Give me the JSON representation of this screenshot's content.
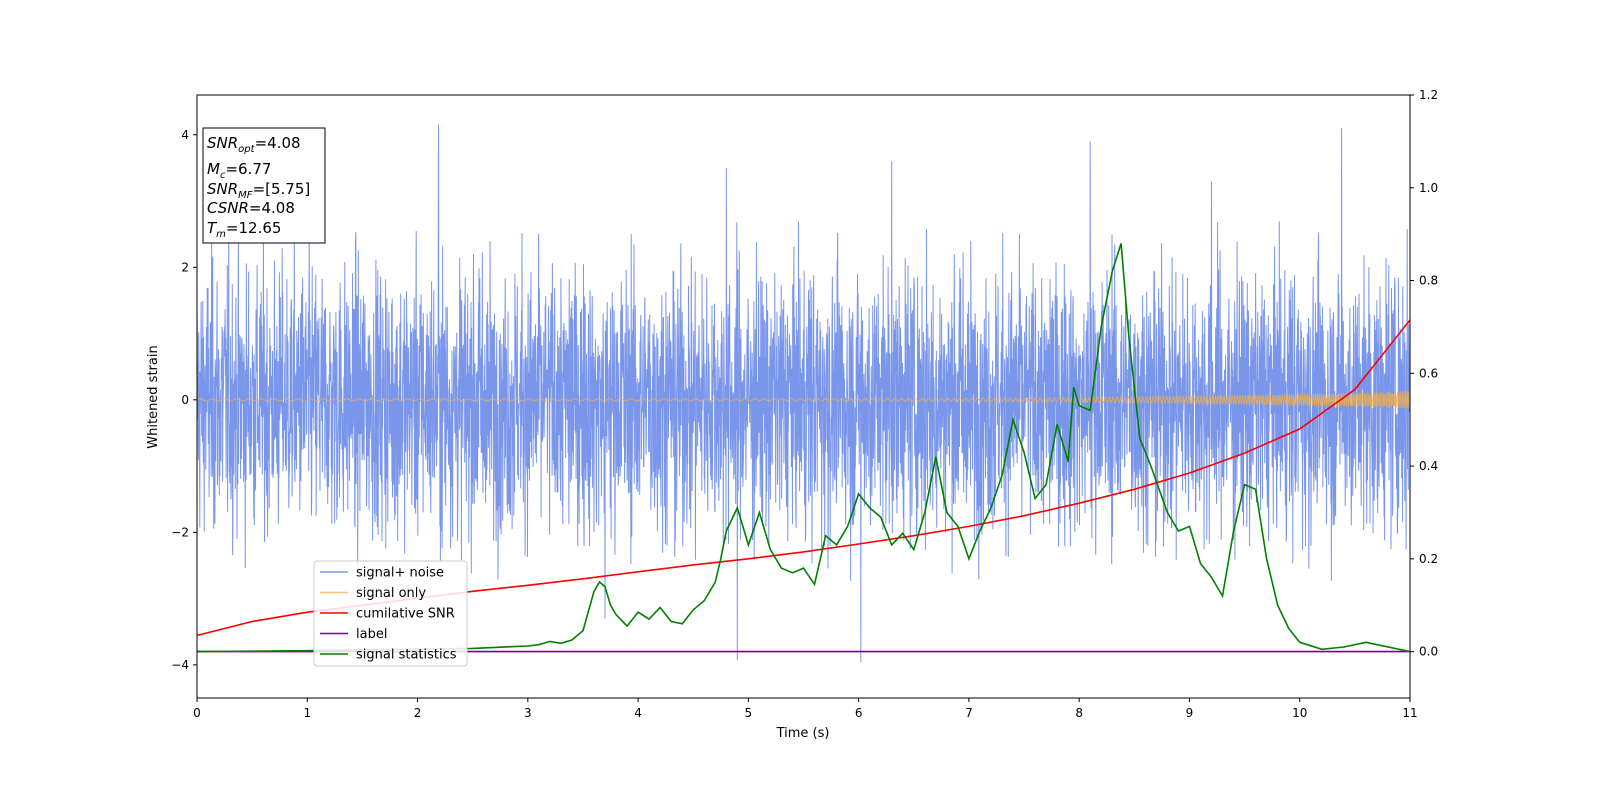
{
  "chart_data": {
    "type": "line",
    "title": "",
    "xlabel": "Time (s)",
    "ylabel": "Whitened strain",
    "xlim": [
      0,
      11
    ],
    "ylim": [
      -4.5,
      4.6
    ],
    "y2lim": [
      -0.1,
      1.2
    ],
    "xticks": [
      0,
      1,
      2,
      3,
      4,
      5,
      6,
      7,
      8,
      9,
      10,
      11
    ],
    "yticks": [
      -4,
      -2,
      0,
      2,
      4
    ],
    "y2ticks": [
      0.0,
      0.2,
      0.4,
      0.6,
      0.8,
      1.0,
      1.2
    ],
    "grid": false,
    "legend_placement": "lower-left",
    "annotation": {
      "lines": [
        {
          "sym": "SNR",
          "sub": "opt",
          "val": "=4.08"
        },
        {
          "sym": "M",
          "sub": "c",
          "val": "=6.77"
        },
        {
          "sym": "SNR",
          "sub": "MF",
          "val": "=[5.75]"
        },
        {
          "sym": "CSNR",
          "sub": "",
          "val": "=4.08"
        },
        {
          "sym": "T",
          "sub": "m",
          "val": "=12.65"
        }
      ]
    },
    "series": [
      {
        "name": "signal+ noise",
        "axis": "left",
        "color": "#4169e1",
        "style": "noise",
        "rms": 1.0,
        "peaks": [
          [
            2.19,
            4.15
          ],
          [
            4.9,
            -3.93
          ],
          [
            6.02,
            -3.96
          ],
          [
            10.38,
            4.1
          ],
          [
            8.1,
            3.9
          ],
          [
            9.2,
            3.3
          ],
          [
            6.3,
            3.6
          ],
          [
            4.8,
            3.5
          ],
          [
            3.7,
            -3.3
          ]
        ]
      },
      {
        "name": "signal only",
        "axis": "left",
        "color": "#f5b041",
        "style": "chirp",
        "amp_start": 0.015,
        "amp_end": 0.13
      },
      {
        "name": "cumilative SNR",
        "axis": "right",
        "color": "#ff0000",
        "x": [
          0,
          0.5,
          1,
          1.5,
          2,
          2.5,
          3,
          3.5,
          4,
          4.5,
          5,
          5.5,
          6,
          6.5,
          7,
          7.5,
          8,
          8.5,
          9,
          9.5,
          10,
          10.5,
          11
        ],
        "y": [
          0.035,
          0.065,
          0.085,
          0.1,
          0.115,
          0.13,
          0.143,
          0.157,
          0.172,
          0.187,
          0.2,
          0.215,
          0.232,
          0.25,
          0.27,
          0.293,
          0.32,
          0.35,
          0.385,
          0.428,
          0.48,
          0.565,
          0.715
        ]
      },
      {
        "name": "label",
        "axis": "right",
        "color": "#800080",
        "x": [
          0,
          11
        ],
        "y": [
          0,
          0
        ]
      },
      {
        "name": "signal statistics",
        "axis": "right",
        "color": "#008000",
        "x": [
          0,
          0.5,
          1,
          1.5,
          2,
          2.5,
          3,
          3.1,
          3.2,
          3.3,
          3.4,
          3.5,
          3.6,
          3.65,
          3.7,
          3.75,
          3.8,
          3.9,
          4.0,
          4.1,
          4.2,
          4.3,
          4.4,
          4.5,
          4.6,
          4.7,
          4.75,
          4.8,
          4.9,
          5.0,
          5.1,
          5.2,
          5.3,
          5.4,
          5.5,
          5.6,
          5.7,
          5.8,
          5.9,
          6.0,
          6.1,
          6.2,
          6.3,
          6.4,
          6.5,
          6.6,
          6.7,
          6.8,
          6.9,
          7.0,
          7.1,
          7.2,
          7.3,
          7.4,
          7.5,
          7.6,
          7.7,
          7.8,
          7.9,
          7.95,
          8.0,
          8.1,
          8.2,
          8.3,
          8.38,
          8.45,
          8.55,
          8.65,
          8.8,
          8.9,
          9.0,
          9.1,
          9.2,
          9.3,
          9.4,
          9.5,
          9.6,
          9.7,
          9.8,
          9.9,
          10.0,
          10.2,
          10.4,
          10.6,
          11
        ],
        "y": [
          0.0,
          0.001,
          0.002,
          0.004,
          0.005,
          0.007,
          0.012,
          0.015,
          0.022,
          0.018,
          0.025,
          0.045,
          0.13,
          0.15,
          0.14,
          0.1,
          0.08,
          0.055,
          0.085,
          0.07,
          0.095,
          0.065,
          0.06,
          0.09,
          0.11,
          0.15,
          0.2,
          0.26,
          0.31,
          0.23,
          0.3,
          0.22,
          0.18,
          0.17,
          0.18,
          0.145,
          0.25,
          0.23,
          0.27,
          0.34,
          0.31,
          0.29,
          0.23,
          0.255,
          0.22,
          0.3,
          0.42,
          0.3,
          0.27,
          0.2,
          0.26,
          0.31,
          0.38,
          0.5,
          0.43,
          0.33,
          0.36,
          0.49,
          0.41,
          0.57,
          0.53,
          0.52,
          0.7,
          0.82,
          0.88,
          0.68,
          0.46,
          0.4,
          0.3,
          0.26,
          0.27,
          0.19,
          0.16,
          0.12,
          0.26,
          0.36,
          0.35,
          0.2,
          0.1,
          0.05,
          0.02,
          0.005,
          0.01,
          0.02,
          0.0
        ]
      }
    ]
  }
}
